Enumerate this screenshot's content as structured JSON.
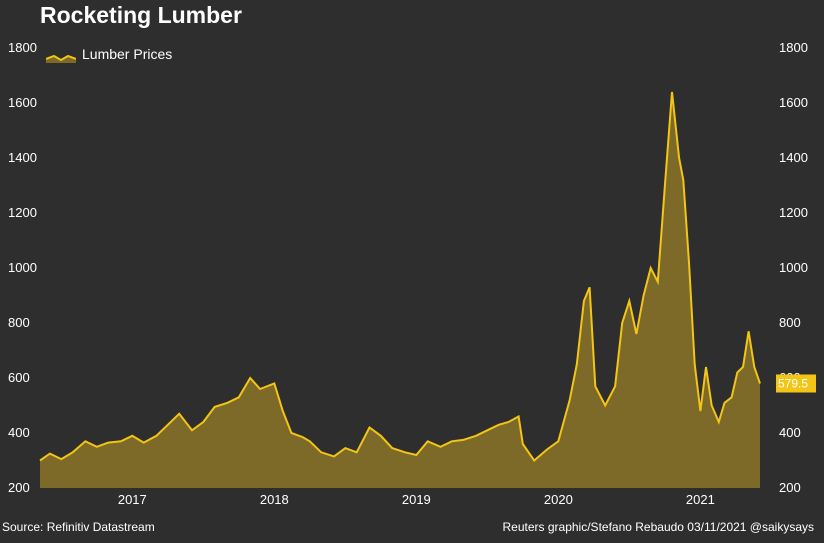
{
  "chart_data": {
    "type": "area",
    "title": "Rocketing Lumber",
    "series": [
      {
        "name": "Lumber Prices",
        "x": [
          2016.35,
          2016.42,
          2016.5,
          2016.58,
          2016.67,
          2016.75,
          2016.83,
          2016.92,
          2017.0,
          2017.08,
          2017.17,
          2017.25,
          2017.33,
          2017.42,
          2017.5,
          2017.58,
          2017.67,
          2017.75,
          2017.83,
          2017.9,
          2018.0,
          2018.06,
          2018.12,
          2018.2,
          2018.25,
          2018.33,
          2018.42,
          2018.5,
          2018.58,
          2018.67,
          2018.75,
          2018.83,
          2018.92,
          2019.0,
          2019.08,
          2019.17,
          2019.25,
          2019.33,
          2019.42,
          2019.5,
          2019.58,
          2019.65,
          2019.72,
          2019.75,
          2019.83,
          2019.92,
          2020.0,
          2020.08,
          2020.13,
          2020.18,
          2020.22,
          2020.26,
          2020.33,
          2020.4,
          2020.45,
          2020.5,
          2020.55,
          2020.6,
          2020.65,
          2020.7,
          2020.75,
          2020.8,
          2020.85,
          2020.88,
          2020.92,
          2020.96,
          2021.0,
          2021.04,
          2021.08,
          2021.13,
          2021.17,
          2021.22,
          2021.26,
          2021.3,
          2021.34,
          2021.38,
          2021.42
        ],
        "values": [
          300,
          325,
          305,
          330,
          370,
          350,
          365,
          370,
          390,
          365,
          390,
          430,
          470,
          410,
          440,
          495,
          510,
          530,
          600,
          560,
          580,
          480,
          400,
          385,
          370,
          330,
          315,
          345,
          330,
          420,
          390,
          345,
          330,
          320,
          370,
          350,
          370,
          375,
          390,
          410,
          430,
          440,
          460,
          360,
          300,
          340,
          370,
          520,
          650,
          880,
          930,
          570,
          500,
          570,
          800,
          880,
          760,
          900,
          1000,
          950,
          1300,
          1640,
          1400,
          1320,
          1020,
          650,
          480,
          640,
          500,
          440,
          510,
          530,
          620,
          640,
          770,
          640,
          580
        ]
      }
    ],
    "xlim": [
      2016.35,
      2021.42
    ],
    "ylim": [
      200,
      1800
    ],
    "y_ticks": [
      200,
      400,
      600,
      800,
      1000,
      1200,
      1400,
      1600,
      1800
    ],
    "x_ticks": [
      "2017",
      "2018",
      "2019",
      "2020",
      "2021"
    ],
    "x_tick_values": [
      2017,
      2018,
      2019,
      2020,
      2021
    ],
    "end_label": "579.5",
    "legend": "top-left",
    "grid": false
  },
  "colors": {
    "background": "#2e2e2e",
    "line": "#f2c516",
    "area": "#7d6a28",
    "label_bg": "#f2c516"
  },
  "footer": {
    "source": "Source: Refinitiv Datastream",
    "credit": "Reuters graphic/Stefano Rebaudo 03/11/2021 @saikysays"
  }
}
